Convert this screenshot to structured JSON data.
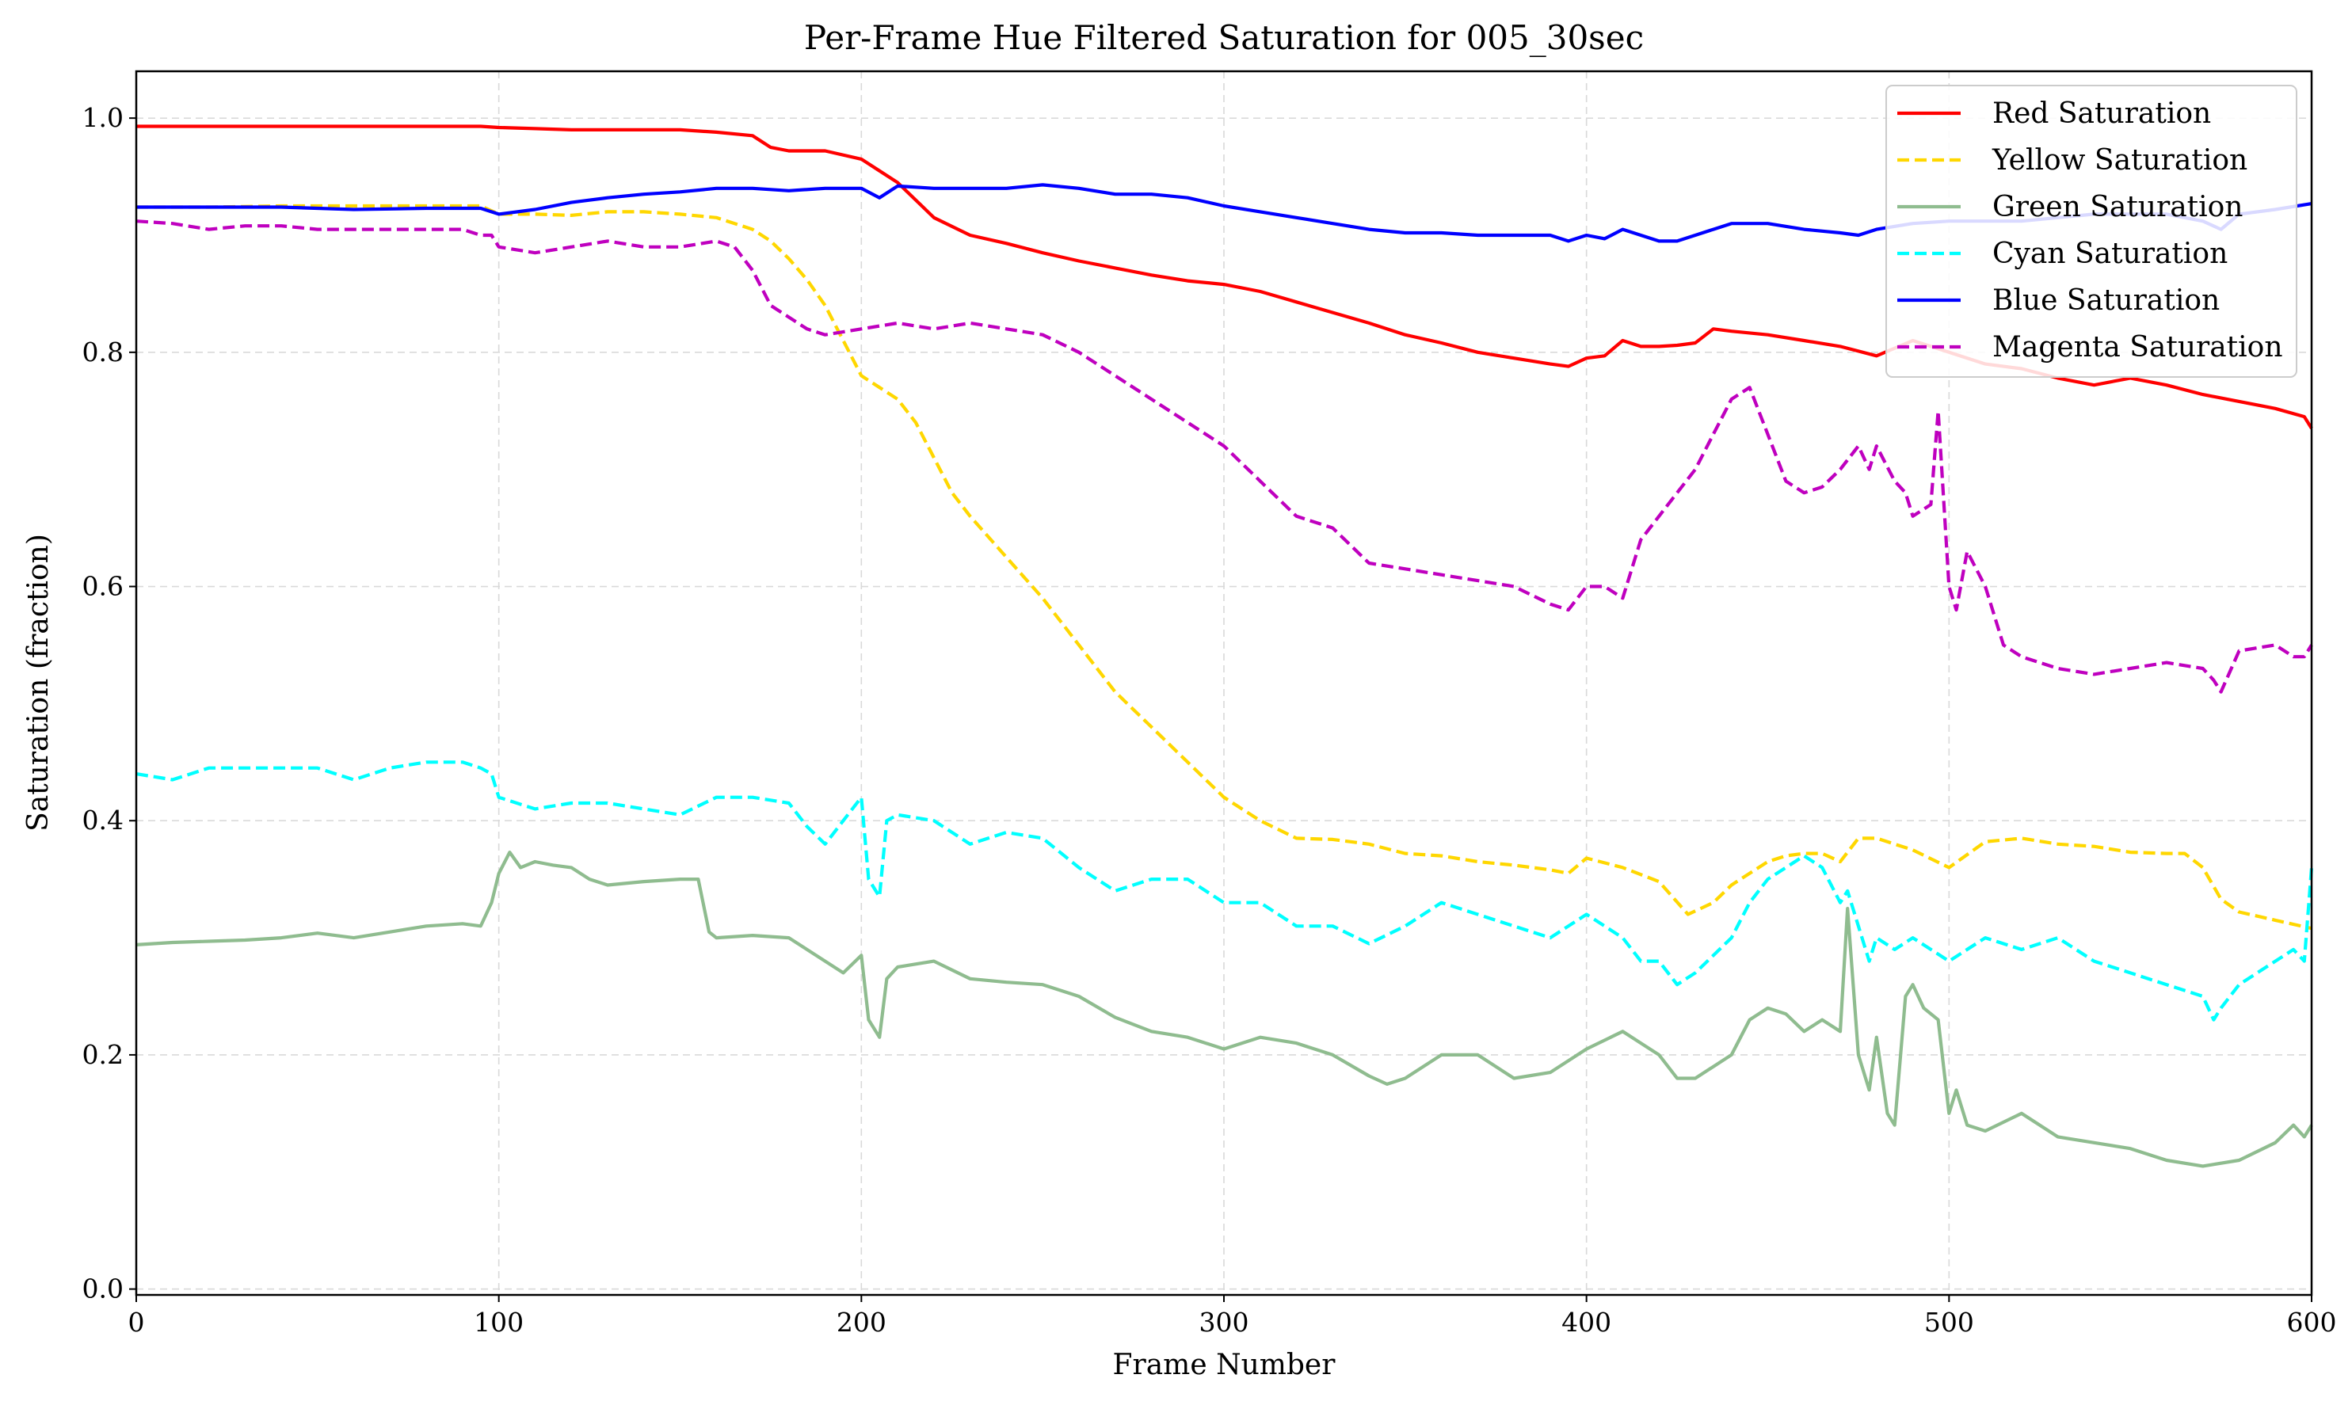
{
  "chart_data": {
    "type": "line",
    "title": "Per-Frame Hue Filtered Saturation for 005_30sec",
    "xlabel": "Frame Number",
    "ylabel": "Saturation (fraction)",
    "xlim": [
      0,
      600
    ],
    "ylim": [
      -0.005,
      1.04
    ],
    "xticks": [
      "0",
      "100",
      "200",
      "300",
      "400",
      "500",
      "600"
    ],
    "yticks": [
      "0.0",
      "0.2",
      "0.4",
      "0.6",
      "0.8",
      "1.0"
    ],
    "grid": true,
    "legend_position": "top-right",
    "series": [
      {
        "name": "Red Saturation",
        "color": "#ff0000",
        "style": "solid",
        "x": [
          0,
          20,
          40,
          60,
          80,
          95,
          100,
          110,
          120,
          130,
          140,
          150,
          160,
          170,
          175,
          180,
          190,
          200,
          205,
          210,
          215,
          220,
          230,
          240,
          250,
          260,
          270,
          280,
          290,
          300,
          310,
          320,
          330,
          340,
          350,
          360,
          370,
          380,
          390,
          395,
          400,
          405,
          410,
          415,
          420,
          425,
          430,
          435,
          440,
          450,
          460,
          470,
          480,
          490,
          500,
          510,
          520,
          530,
          540,
          550,
          560,
          570,
          580,
          590,
          598,
          600
        ],
        "y": [
          0.993,
          0.993,
          0.993,
          0.993,
          0.993,
          0.993,
          0.992,
          0.991,
          0.99,
          0.99,
          0.99,
          0.99,
          0.988,
          0.985,
          0.975,
          0.972,
          0.972,
          0.965,
          0.955,
          0.945,
          0.93,
          0.915,
          0.9,
          0.893,
          0.885,
          0.878,
          0.872,
          0.866,
          0.861,
          0.858,
          0.852,
          0.843,
          0.834,
          0.825,
          0.815,
          0.808,
          0.8,
          0.795,
          0.79,
          0.788,
          0.795,
          0.797,
          0.81,
          0.805,
          0.805,
          0.806,
          0.808,
          0.82,
          0.818,
          0.815,
          0.81,
          0.805,
          0.797,
          0.81,
          0.8,
          0.79,
          0.786,
          0.778,
          0.772,
          0.778,
          0.772,
          0.764,
          0.758,
          0.752,
          0.745,
          0.735
        ]
      },
      {
        "name": "Yellow Saturation",
        "color": "#ffd700",
        "style": "dashed",
        "x": [
          0,
          20,
          40,
          60,
          80,
          95,
          100,
          110,
          120,
          130,
          140,
          150,
          160,
          170,
          175,
          180,
          185,
          190,
          195,
          200,
          205,
          210,
          215,
          220,
          225,
          230,
          240,
          250,
          260,
          270,
          280,
          290,
          300,
          310,
          320,
          330,
          340,
          350,
          360,
          370,
          380,
          390,
          395,
          400,
          410,
          420,
          428,
          435,
          440,
          450,
          455,
          460,
          465,
          470,
          475,
          480,
          490,
          500,
          510,
          520,
          530,
          540,
          550,
          560,
          565,
          570,
          575,
          580,
          590,
          600
        ],
        "y": [
          0.924,
          0.924,
          0.925,
          0.925,
          0.925,
          0.925,
          0.918,
          0.918,
          0.917,
          0.92,
          0.92,
          0.918,
          0.915,
          0.905,
          0.895,
          0.88,
          0.862,
          0.84,
          0.81,
          0.78,
          0.77,
          0.76,
          0.74,
          0.71,
          0.68,
          0.66,
          0.625,
          0.59,
          0.55,
          0.51,
          0.48,
          0.45,
          0.42,
          0.4,
          0.385,
          0.384,
          0.38,
          0.372,
          0.37,
          0.365,
          0.362,
          0.358,
          0.355,
          0.368,
          0.36,
          0.348,
          0.32,
          0.33,
          0.345,
          0.365,
          0.37,
          0.372,
          0.372,
          0.365,
          0.385,
          0.385,
          0.375,
          0.36,
          0.382,
          0.385,
          0.38,
          0.378,
          0.373,
          0.372,
          0.372,
          0.36,
          0.333,
          0.322,
          0.315,
          0.308
        ]
      },
      {
        "name": "Green Saturation",
        "color": "#8fbc8f",
        "style": "solid",
        "x": [
          0,
          10,
          20,
          30,
          40,
          50,
          60,
          70,
          80,
          90,
          95,
          98,
          100,
          103,
          106,
          110,
          115,
          120,
          125,
          130,
          140,
          150,
          155,
          158,
          160,
          170,
          180,
          185,
          190,
          195,
          200,
          202,
          205,
          207,
          210,
          220,
          230,
          240,
          250,
          260,
          270,
          280,
          290,
          300,
          310,
          320,
          330,
          340,
          345,
          350,
          360,
          370,
          380,
          390,
          400,
          410,
          415,
          420,
          425,
          430,
          440,
          445,
          450,
          455,
          460,
          465,
          470,
          472,
          475,
          478,
          480,
          483,
          485,
          488,
          490,
          493,
          497,
          500,
          502,
          505,
          510,
          520,
          530,
          540,
          550,
          560,
          570,
          580,
          590,
          595,
          598,
          600
        ],
        "y": [
          0.294,
          0.296,
          0.297,
          0.298,
          0.3,
          0.304,
          0.3,
          0.305,
          0.31,
          0.312,
          0.31,
          0.33,
          0.355,
          0.373,
          0.36,
          0.365,
          0.362,
          0.36,
          0.35,
          0.345,
          0.348,
          0.35,
          0.35,
          0.305,
          0.3,
          0.302,
          0.3,
          0.29,
          0.28,
          0.27,
          0.285,
          0.23,
          0.215,
          0.265,
          0.275,
          0.28,
          0.265,
          0.262,
          0.26,
          0.25,
          0.232,
          0.22,
          0.215,
          0.205,
          0.215,
          0.21,
          0.2,
          0.182,
          0.175,
          0.18,
          0.2,
          0.2,
          0.18,
          0.185,
          0.205,
          0.22,
          0.21,
          0.2,
          0.18,
          0.18,
          0.2,
          0.23,
          0.24,
          0.235,
          0.22,
          0.23,
          0.22,
          0.325,
          0.2,
          0.17,
          0.215,
          0.15,
          0.14,
          0.25,
          0.26,
          0.24,
          0.23,
          0.15,
          0.17,
          0.14,
          0.135,
          0.15,
          0.13,
          0.125,
          0.12,
          0.11,
          0.105,
          0.11,
          0.125,
          0.14,
          0.13,
          0.14
        ]
      },
      {
        "name": "Cyan Saturation",
        "color": "#00ffff",
        "style": "dashed",
        "x": [
          0,
          10,
          20,
          30,
          40,
          50,
          60,
          70,
          80,
          90,
          95,
          98,
          100,
          110,
          120,
          130,
          140,
          150,
          160,
          170,
          180,
          185,
          190,
          195,
          200,
          202,
          205,
          207,
          210,
          220,
          230,
          240,
          250,
          260,
          270,
          280,
          290,
          300,
          310,
          320,
          330,
          340,
          350,
          360,
          370,
          380,
          390,
          400,
          410,
          415,
          420,
          425,
          430,
          440,
          445,
          450,
          455,
          460,
          465,
          470,
          472,
          475,
          478,
          480,
          485,
          490,
          500,
          510,
          520,
          530,
          540,
          550,
          560,
          570,
          573,
          575,
          580,
          590,
          595,
          598,
          600
        ],
        "y": [
          0.44,
          0.435,
          0.445,
          0.445,
          0.445,
          0.445,
          0.435,
          0.445,
          0.45,
          0.45,
          0.445,
          0.44,
          0.42,
          0.41,
          0.415,
          0.415,
          0.41,
          0.405,
          0.42,
          0.42,
          0.415,
          0.395,
          0.38,
          0.4,
          0.42,
          0.35,
          0.335,
          0.4,
          0.405,
          0.4,
          0.38,
          0.39,
          0.385,
          0.36,
          0.34,
          0.35,
          0.35,
          0.33,
          0.33,
          0.31,
          0.31,
          0.295,
          0.31,
          0.33,
          0.32,
          0.31,
          0.3,
          0.32,
          0.3,
          0.28,
          0.28,
          0.26,
          0.27,
          0.3,
          0.33,
          0.35,
          0.36,
          0.37,
          0.36,
          0.33,
          0.34,
          0.31,
          0.28,
          0.3,
          0.29,
          0.3,
          0.28,
          0.3,
          0.29,
          0.3,
          0.28,
          0.27,
          0.26,
          0.25,
          0.23,
          0.24,
          0.26,
          0.28,
          0.29,
          0.28,
          0.36
        ]
      },
      {
        "name": "Blue Saturation",
        "color": "#0000ff",
        "style": "solid",
        "x": [
          0,
          20,
          40,
          60,
          80,
          95,
          100,
          110,
          120,
          130,
          140,
          150,
          160,
          170,
          180,
          190,
          200,
          205,
          210,
          220,
          230,
          240,
          250,
          260,
          270,
          280,
          290,
          300,
          310,
          320,
          330,
          340,
          350,
          360,
          370,
          380,
          390,
          395,
          400,
          405,
          410,
          415,
          420,
          425,
          430,
          435,
          440,
          450,
          460,
          470,
          475,
          480,
          490,
          500,
          510,
          520,
          530,
          540,
          550,
          560,
          570,
          575,
          580,
          590,
          600
        ],
        "y": [
          0.924,
          0.924,
          0.924,
          0.922,
          0.923,
          0.923,
          0.918,
          0.922,
          0.928,
          0.932,
          0.935,
          0.937,
          0.94,
          0.94,
          0.938,
          0.94,
          0.94,
          0.932,
          0.942,
          0.94,
          0.94,
          0.94,
          0.943,
          0.94,
          0.935,
          0.935,
          0.932,
          0.925,
          0.92,
          0.915,
          0.91,
          0.905,
          0.902,
          0.902,
          0.9,
          0.9,
          0.9,
          0.895,
          0.9,
          0.897,
          0.905,
          0.9,
          0.895,
          0.895,
          0.9,
          0.905,
          0.91,
          0.91,
          0.905,
          0.902,
          0.9,
          0.905,
          0.91,
          0.912,
          0.912,
          0.912,
          0.915,
          0.918,
          0.918,
          0.918,
          0.912,
          0.905,
          0.918,
          0.922,
          0.927
        ]
      },
      {
        "name": "Magenta Saturation",
        "color": "#bf00bf",
        "style": "dashed",
        "x": [
          0,
          10,
          20,
          30,
          40,
          50,
          60,
          70,
          80,
          90,
          95,
          98,
          100,
          110,
          120,
          130,
          140,
          150,
          160,
          165,
          170,
          175,
          180,
          185,
          190,
          200,
          210,
          220,
          230,
          240,
          250,
          260,
          270,
          280,
          290,
          300,
          310,
          320,
          330,
          340,
          350,
          360,
          370,
          380,
          390,
          395,
          400,
          405,
          410,
          415,
          420,
          425,
          430,
          435,
          440,
          445,
          450,
          455,
          460,
          465,
          470,
          475,
          478,
          480,
          485,
          488,
          490,
          495,
          497,
          500,
          502,
          505,
          510,
          515,
          520,
          530,
          540,
          550,
          560,
          570,
          573,
          575,
          580,
          590,
          595,
          598,
          600
        ],
        "y": [
          0.912,
          0.91,
          0.905,
          0.908,
          0.908,
          0.905,
          0.905,
          0.905,
          0.905,
          0.905,
          0.9,
          0.9,
          0.89,
          0.885,
          0.89,
          0.895,
          0.89,
          0.89,
          0.895,
          0.89,
          0.87,
          0.84,
          0.83,
          0.82,
          0.815,
          0.82,
          0.825,
          0.82,
          0.825,
          0.82,
          0.815,
          0.8,
          0.78,
          0.76,
          0.74,
          0.72,
          0.69,
          0.66,
          0.65,
          0.62,
          0.615,
          0.61,
          0.605,
          0.6,
          0.585,
          0.58,
          0.6,
          0.6,
          0.59,
          0.64,
          0.66,
          0.68,
          0.7,
          0.73,
          0.76,
          0.77,
          0.73,
          0.69,
          0.68,
          0.685,
          0.7,
          0.72,
          0.7,
          0.72,
          0.69,
          0.68,
          0.66,
          0.67,
          0.75,
          0.6,
          0.58,
          0.63,
          0.6,
          0.55,
          0.54,
          0.53,
          0.525,
          0.53,
          0.535,
          0.53,
          0.52,
          0.51,
          0.545,
          0.55,
          0.54,
          0.54,
          0.55
        ]
      }
    ]
  }
}
